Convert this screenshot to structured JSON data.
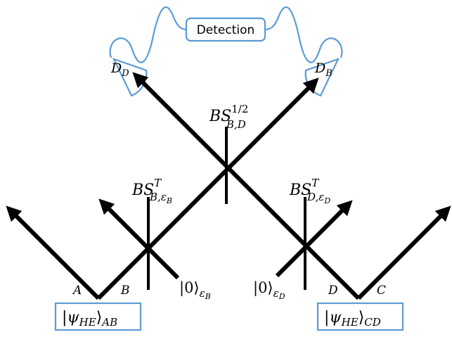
{
  "colors": {
    "beam": "#000000",
    "accent": "#5b9bd5",
    "background": "#ffffff"
  },
  "detection": {
    "label": "Detection",
    "detector_left": {
      "base": "D",
      "sub": "D"
    },
    "detector_right": {
      "base": "D",
      "sub": "B"
    }
  },
  "splitters": {
    "center": {
      "base": "BS",
      "sup": "1/2",
      "sub": "B,D"
    },
    "left": {
      "base": "BS",
      "sup": "T",
      "sub": "B,ε",
      "subsub": "B"
    },
    "right": {
      "base": "BS",
      "sup": "T",
      "sub": "D,ε",
      "subsub": "D"
    }
  },
  "vacuum_inputs": {
    "left": {
      "ket": "|0⟩",
      "sub": "ε",
      "subsub": "B"
    },
    "right": {
      "ket": "|0⟩",
      "sub": "ε",
      "subsub": "D"
    }
  },
  "modes": {
    "A": "A",
    "B": "B",
    "D": "D",
    "C": "C"
  },
  "sources": {
    "left": {
      "base": "|ψ",
      "sub1": "HE",
      "tail": "⟩",
      "sub2": "AB"
    },
    "right": {
      "base": "|ψ",
      "sub1": "HE",
      "tail": "⟩",
      "sub2": "CD"
    }
  }
}
